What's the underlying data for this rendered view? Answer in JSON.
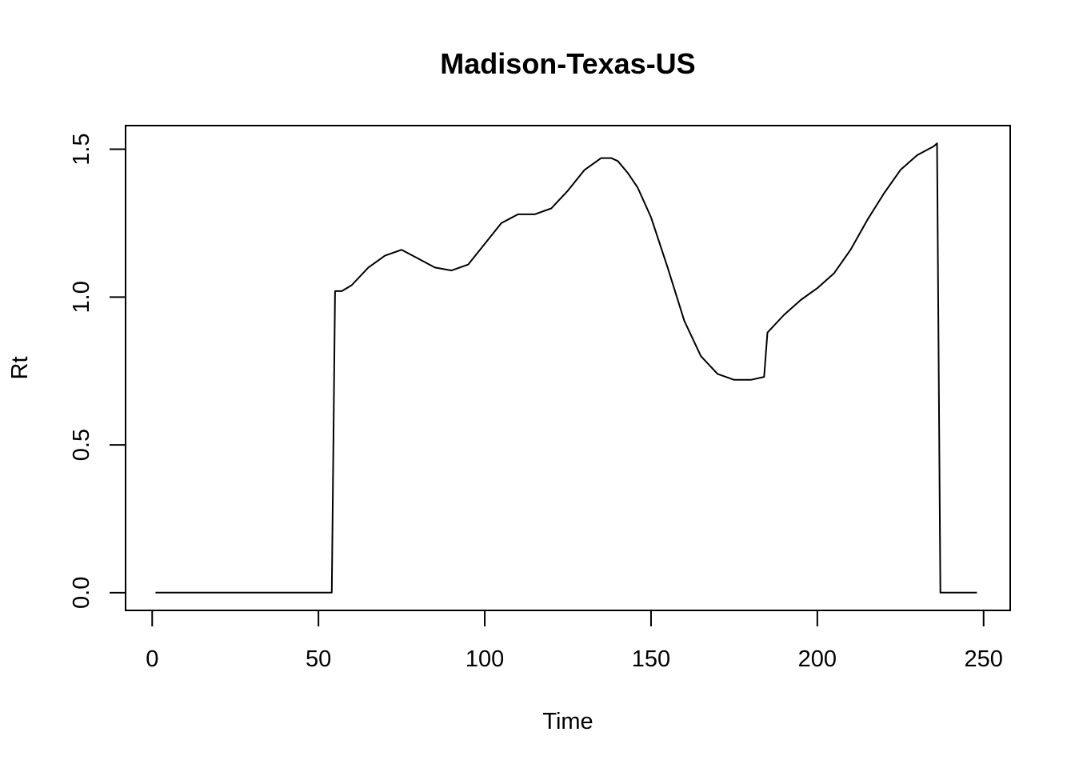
{
  "chart_data": {
    "type": "line",
    "title": "Madison-Texas-US",
    "xlabel": "Time",
    "ylabel": "Rt",
    "xlim": [
      -8,
      258
    ],
    "ylim": [
      -0.06,
      1.58
    ],
    "xticks": [
      0,
      50,
      100,
      150,
      200,
      250
    ],
    "xtick_labels": [
      "0",
      "50",
      "100",
      "150",
      "200",
      "250"
    ],
    "yticks": [
      0.0,
      0.5,
      1.0,
      1.5
    ],
    "ytick_labels": [
      "0.0",
      "0.5",
      "1.0",
      "1.5"
    ],
    "grid": false,
    "series": [
      {
        "x": [
          1,
          10,
          20,
          30,
          40,
          50,
          54,
          55,
          57,
          60,
          65,
          70,
          75,
          80,
          85,
          90,
          95,
          100,
          105,
          110,
          115,
          120,
          125,
          130,
          135,
          138,
          140,
          143,
          146,
          150,
          155,
          160,
          165,
          170,
          175,
          180,
          184,
          185,
          190,
          195,
          200,
          205,
          210,
          215,
          220,
          225,
          230,
          235,
          236,
          237,
          240,
          245,
          248
        ],
        "y": [
          0,
          0,
          0,
          0,
          0,
          0,
          0,
          1.02,
          1.02,
          1.04,
          1.1,
          1.14,
          1.16,
          1.13,
          1.1,
          1.09,
          1.11,
          1.18,
          1.25,
          1.28,
          1.28,
          1.3,
          1.36,
          1.43,
          1.47,
          1.47,
          1.46,
          1.42,
          1.37,
          1.27,
          1.1,
          0.92,
          0.8,
          0.74,
          0.72,
          0.72,
          0.73,
          0.88,
          0.94,
          0.99,
          1.03,
          1.08,
          1.16,
          1.26,
          1.35,
          1.43,
          1.48,
          1.51,
          1.52,
          0,
          0,
          0,
          0
        ]
      }
    ]
  }
}
